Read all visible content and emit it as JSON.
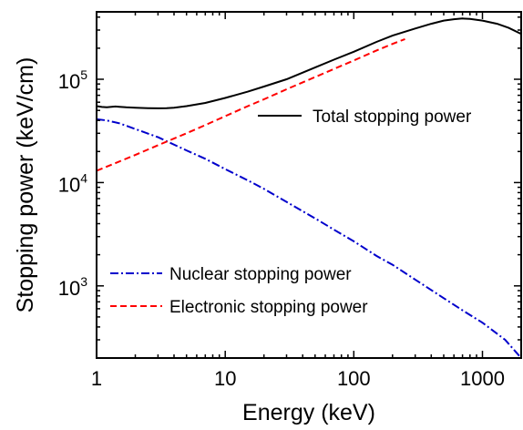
{
  "chart_data": {
    "type": "line",
    "xlabel": "Energy (keV)",
    "ylabel": "Stopping power (keV/cm)",
    "xscale": "log",
    "yscale": "log",
    "xlim": [
      1,
      2000
    ],
    "ylim": [
      200,
      450000
    ],
    "x_ticks": [
      {
        "value": 1,
        "label": "1"
      },
      {
        "value": 10,
        "label": "10"
      },
      {
        "value": 100,
        "label": "100"
      },
      {
        "value": 1000,
        "label": "1000"
      }
    ],
    "y_ticks": [
      {
        "value": 1000,
        "base": "10",
        "exp": "3"
      },
      {
        "value": 10000,
        "base": "10",
        "exp": "4"
      },
      {
        "value": 100000,
        "base": "10",
        "exp": "5"
      }
    ],
    "grid": false,
    "series": [
      {
        "name": "Total stopping power",
        "color": "#000000",
        "style": "solid",
        "x": [
          1,
          1.1,
          1.2,
          1.4,
          1.5,
          1.7,
          2,
          2.5,
          3,
          3.5,
          4,
          5,
          7,
          10,
          15,
          20,
          30,
          50,
          70,
          100,
          150,
          200,
          300,
          400,
          500,
          600,
          700,
          800,
          1000,
          1300,
          1600,
          2000
        ],
        "y": [
          55000,
          54000,
          53500,
          54500,
          54200,
          53500,
          53000,
          52600,
          52400,
          52600,
          53000,
          55000,
          59000,
          66000,
          76000,
          85000,
          100000,
          130000,
          155000,
          185000,
          230000,
          265000,
          310000,
          345000,
          370000,
          382000,
          388000,
          384000,
          370000,
          345000,
          315000,
          275000
        ]
      },
      {
        "name": "Nuclear stopping power",
        "color": "#0000cc",
        "style": "dashdot",
        "x": [
          1,
          1.2,
          1.5,
          2,
          3,
          5,
          7,
          10,
          15,
          20,
          30,
          50,
          70,
          100,
          150,
          200,
          300,
          500,
          700,
          1000,
          1500,
          2000
        ],
        "y": [
          41000,
          40000,
          37500,
          33000,
          27500,
          20500,
          17000,
          13500,
          10500,
          8700,
          6500,
          4500,
          3500,
          2700,
          1950,
          1600,
          1150,
          760,
          580,
          440,
          300,
          200
        ]
      },
      {
        "name": "Electronic stopping power",
        "color": "#ff0000",
        "style": "dashed",
        "x": [
          1,
          1.5,
          2,
          3,
          5,
          7,
          10,
          15,
          20,
          30,
          50,
          70,
          100,
          150,
          200,
          250
        ],
        "y": [
          13000,
          16000,
          18500,
          23000,
          30000,
          36000,
          44000,
          55000,
          64000,
          80000,
          105000,
          126000,
          152000,
          190000,
          220000,
          245000
        ]
      }
    ],
    "legend": [
      {
        "series": 0,
        "label": "Total stopping power"
      },
      {
        "series": 1,
        "label": "Nuclear stopping power"
      },
      {
        "series": 2,
        "label": "Electronic stopping power"
      }
    ]
  }
}
